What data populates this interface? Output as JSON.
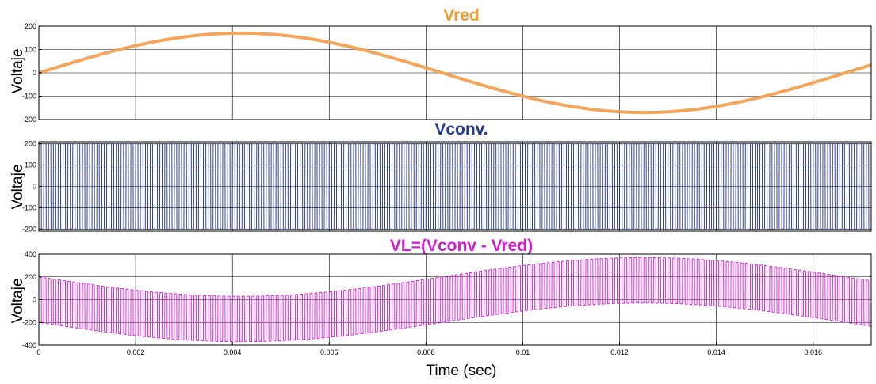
{
  "figure": {
    "xlabel": "Time (sec)",
    "xlim": [
      0,
      0.0172
    ],
    "xticks": [
      0,
      0.002,
      0.004,
      0.006,
      0.008,
      0.01,
      0.012,
      0.014,
      0.016
    ],
    "xtick_labels": [
      "0",
      "0.002",
      "0.004",
      "0.006",
      "0.008",
      "0.01",
      "0.012",
      "0.014",
      "0.016"
    ]
  },
  "chart_data": [
    {
      "type": "line",
      "title": "Vred",
      "ylabel": "Voltaje",
      "ylim": [
        -200,
        200
      ],
      "yticks": [
        -200,
        -100,
        0,
        100,
        200
      ],
      "ytick_labels": [
        "-200",
        "-100",
        "0",
        "100",
        "200"
      ],
      "grid": true,
      "color": "#f4a55a",
      "title_color": "#f29b2e",
      "signal": {
        "kind": "sine",
        "amplitude": 170,
        "frequency_hz": 60,
        "phase_deg": 0
      },
      "series": [
        {
          "x": [
            0,
            0.001,
            0.002,
            0.003,
            0.004,
            0.005,
            0.006,
            0.007,
            0.008,
            0.009,
            0.01,
            0.011,
            0.012,
            0.013,
            0.014,
            0.015,
            0.016,
            0.017,
            0.0172
          ],
          "values": [
            0,
            62,
            115,
            155,
            170,
            167,
            138,
            94,
            36,
            -36,
            -94,
            -138,
            -167,
            -170,
            -155,
            -115,
            -62,
            0,
            13
          ]
        }
      ]
    },
    {
      "type": "line",
      "title": "Vconv.",
      "ylabel": "Voltaje",
      "ylim": [
        -210,
        210
      ],
      "yticks": [
        -200,
        -100,
        0,
        100,
        200
      ],
      "ytick_labels": [
        "-200",
        "-100",
        "0",
        "100",
        "200"
      ],
      "grid": true,
      "color": "#1f2f8c",
      "title_color": "#233a8f",
      "signal": {
        "kind": "square",
        "low": -200,
        "high": 200,
        "frequency_hz": 10000
      },
      "series": [
        {
          "x": [
            0,
            0.0172
          ],
          "values_range": [
            -200,
            200
          ]
        }
      ]
    },
    {
      "type": "line",
      "title": "VL=(Vconv - Vred)",
      "ylabel": "Voltaje",
      "ylim": [
        -400,
        400
      ],
      "yticks": [
        -400,
        -200,
        0,
        200,
        400
      ],
      "ytick_labels": [
        "-400",
        "-200",
        "0",
        "200",
        "400"
      ],
      "grid": true,
      "color": "#e10fe1",
      "title_color": "#d21ed2",
      "signal": {
        "kind": "square_minus_sine",
        "low": -200,
        "high": 200,
        "frequency_hz": 10000,
        "sine_amplitude": 170,
        "sine_frequency_hz": 60
      },
      "series": [
        {
          "x": [
            0,
            0.004,
            0.0125,
            0.0172
          ],
          "upper_envelope": [
            200,
            30,
            370,
            150
          ],
          "lower_envelope": [
            -200,
            -370,
            -30,
            -250
          ]
        }
      ]
    }
  ]
}
